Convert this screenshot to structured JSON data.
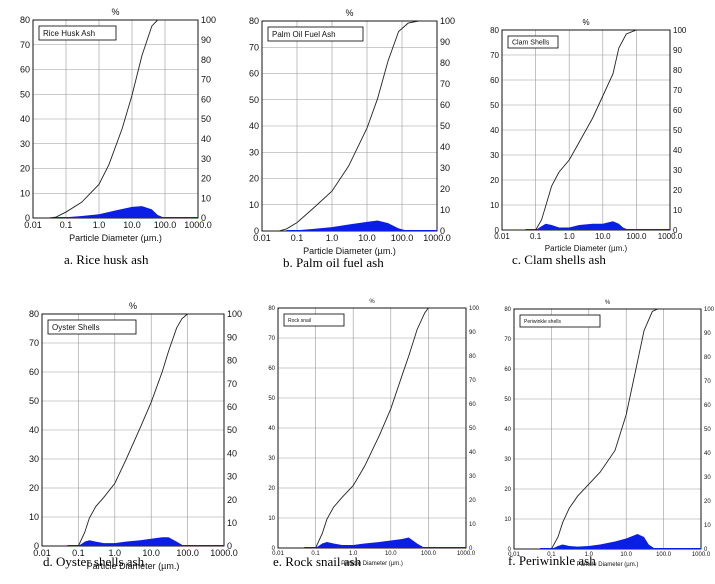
{
  "figure": {
    "panels": [
      {
        "id": "a",
        "legend": "Rice Husk Ash",
        "caption": "a. Rice husk ash"
      },
      {
        "id": "b",
        "legend": "Palm Oil Fuel Ash",
        "caption": "b. Palm oil fuel ash"
      },
      {
        "id": "c",
        "legend": "Clam Shells",
        "caption": "c. Clam shells ash"
      },
      {
        "id": "d",
        "legend": "Oyster Shells",
        "caption": "d. Oyster shells ash"
      },
      {
        "id": "e",
        "legend": "Rock snail",
        "caption": "e. Rock snail ash"
      },
      {
        "id": "f",
        "legend": "Periwinkle shells",
        "caption": "f. Periwinkle ash"
      }
    ]
  },
  "colors": {
    "frequency_fill": "#0a1ee6",
    "cumulative_line": "#222222",
    "grid": "#9a9a9a",
    "frame": "#000000"
  },
  "chart_data": [
    {
      "type": "area",
      "title": "%",
      "xlabel": "Particle Diameter (µm.)",
      "x_scale": "log",
      "xlim": [
        0.01,
        1000
      ],
      "x_ticks": [
        "0.01",
        "0.1",
        "1.0",
        "10.0",
        "100.0",
        "1000.0"
      ],
      "ylim_left": [
        0,
        80
      ],
      "y_ticks_left": [
        "0",
        "10",
        "20",
        "30",
        "40",
        "50",
        "60",
        "70",
        "80"
      ],
      "ylim_right": [
        0,
        100
      ],
      "y_ticks_right": [
        "0",
        "10",
        "20",
        "30",
        "40",
        "50",
        "60",
        "70",
        "80",
        "90",
        "100"
      ],
      "grid": true,
      "legend_position": "top-left",
      "series": [
        {
          "name": "Rice Husk Ash",
          "kind": "frequency",
          "axis": "left",
          "x": [
            0.05,
            0.1,
            0.3,
            1,
            3,
            10,
            20,
            40,
            60,
            100
          ],
          "y": [
            0,
            0.3,
            0.8,
            1.5,
            3,
            4.5,
            4.8,
            3.5,
            1.2,
            0
          ]
        },
        {
          "name": "Rice Husk Ash",
          "kind": "cumulative",
          "axis": "right",
          "x": [
            0.03,
            0.05,
            0.1,
            0.3,
            1,
            2,
            5,
            10,
            20,
            40,
            60,
            100,
            1000
          ],
          "y": [
            0,
            0.5,
            3,
            8,
            17,
            27,
            45,
            62,
            82,
            97,
            100,
            100,
            100
          ]
        }
      ]
    },
    {
      "type": "area",
      "title": "%",
      "xlabel": "Particle Diameter (µm.)",
      "x_scale": "log",
      "xlim": [
        0.01,
        1000
      ],
      "x_ticks": [
        "0.01",
        "0.1",
        "1.0",
        "10.0",
        "100.0",
        "1000.0"
      ],
      "ylim_left": [
        0,
        80
      ],
      "y_ticks_left": [
        "0",
        "10",
        "20",
        "30",
        "40",
        "50",
        "60",
        "70",
        "80"
      ],
      "ylim_right": [
        0,
        100
      ],
      "y_ticks_right": [
        "0",
        "10",
        "20",
        "30",
        "40",
        "50",
        "60",
        "70",
        "80",
        "90",
        "100"
      ],
      "grid": true,
      "legend_position": "top-left",
      "series": [
        {
          "name": "Palm Oil Fuel Ash",
          "kind": "frequency",
          "axis": "left",
          "x": [
            0.05,
            0.1,
            0.3,
            1,
            3,
            10,
            20,
            40,
            80,
            150
          ],
          "y": [
            0,
            0.3,
            0.8,
            1.5,
            2.5,
            3.5,
            4,
            3,
            1,
            0
          ]
        },
        {
          "name": "Palm Oil Fuel Ash",
          "kind": "cumulative",
          "axis": "right",
          "x": [
            0.03,
            0.05,
            0.1,
            0.3,
            1,
            3,
            10,
            20,
            40,
            80,
            150,
            300,
            1000
          ],
          "y": [
            0,
            1,
            4,
            11,
            19,
            31,
            49,
            63,
            81,
            95,
            99,
            100,
            100
          ]
        }
      ]
    },
    {
      "type": "area",
      "title": "%",
      "xlabel": "Particle Diameter (µm.)",
      "x_scale": "log",
      "xlim": [
        0.01,
        1000
      ],
      "x_ticks": [
        "0.01",
        "0.1",
        "1.0",
        "10.0",
        "100.0",
        "1000.0"
      ],
      "ylim_left": [
        0,
        80
      ],
      "y_ticks_left": [
        "0",
        "10",
        "20",
        "30",
        "40",
        "50",
        "60",
        "70",
        "80"
      ],
      "ylim_right": [
        0,
        100
      ],
      "y_ticks_right": [
        "0",
        "10",
        "20",
        "30",
        "40",
        "50",
        "60",
        "70",
        "80",
        "90",
        "100"
      ],
      "grid": true,
      "legend_position": "top-left",
      "series": [
        {
          "name": "Clam Shells",
          "kind": "frequency",
          "axis": "left",
          "x": [
            0.1,
            0.15,
            0.2,
            0.3,
            0.5,
            1,
            2,
            5,
            10,
            20,
            30,
            40,
            60
          ],
          "y": [
            0,
            1.5,
            2.5,
            2,
            1,
            1,
            2,
            2.5,
            2.5,
            3.5,
            2.5,
            1,
            0
          ]
        },
        {
          "name": "Clam Shells",
          "kind": "cumulative",
          "axis": "right",
          "x": [
            0.1,
            0.15,
            0.2,
            0.3,
            0.5,
            1,
            2,
            5,
            10,
            20,
            30,
            50,
            100,
            1000
          ],
          "y": [
            0,
            5,
            12,
            22,
            29,
            35,
            44,
            56,
            67,
            78,
            91,
            98,
            100,
            100
          ]
        }
      ]
    },
    {
      "type": "area",
      "title": "%",
      "xlabel": "Particle Diameter (µm.)",
      "x_scale": "log",
      "xlim": [
        0.01,
        1000
      ],
      "x_ticks": [
        "0.01",
        "0.1",
        "1.0",
        "10.0",
        "100.0",
        "1000.0"
      ],
      "ylim_left": [
        0,
        80
      ],
      "y_ticks_left": [
        "0",
        "10",
        "20",
        "30",
        "40",
        "50",
        "60",
        "70",
        "80"
      ],
      "ylim_right": [
        0,
        100
      ],
      "y_ticks_right": [
        "0",
        "10",
        "20",
        "30",
        "40",
        "50",
        "60",
        "70",
        "80",
        "90",
        "100"
      ],
      "grid": true,
      "legend_position": "top-left",
      "series": [
        {
          "name": "Oyster Shells",
          "kind": "frequency",
          "axis": "left",
          "x": [
            0.1,
            0.15,
            0.2,
            0.3,
            0.5,
            1,
            2,
            5,
            10,
            20,
            30,
            50,
            80
          ],
          "y": [
            0,
            1.5,
            2,
            1.5,
            1,
            1,
            1.5,
            2,
            2.5,
            3,
            3,
            1.5,
            0
          ]
        },
        {
          "name": "Oyster Shells",
          "kind": "cumulative",
          "axis": "right",
          "x": [
            0.1,
            0.15,
            0.2,
            0.3,
            0.5,
            1,
            2,
            5,
            10,
            20,
            30,
            50,
            70,
            100,
            1000
          ],
          "y": [
            0,
            6,
            12,
            17,
            21,
            27,
            37,
            51,
            62,
            75,
            84,
            94,
            98,
            100,
            100
          ]
        }
      ]
    },
    {
      "type": "area",
      "title": "%",
      "xlabel": "Particle Diameter (µm.)",
      "x_scale": "log",
      "xlim": [
        0.01,
        1000
      ],
      "x_ticks": [
        "0.01",
        "0.1",
        "1.0",
        "10.0",
        "100.0",
        "1000.0"
      ],
      "ylim_left": [
        0,
        80
      ],
      "y_ticks_left": [
        "0",
        "10",
        "20",
        "30",
        "40",
        "50",
        "60",
        "70",
        "80"
      ],
      "ylim_right": [
        0,
        100
      ],
      "y_ticks_right": [
        "0",
        "10",
        "20",
        "30",
        "40",
        "50",
        "60",
        "70",
        "80",
        "90",
        "100"
      ],
      "grid": true,
      "legend_position": "top-left",
      "series": [
        {
          "name": "Rock snail",
          "kind": "frequency",
          "axis": "left",
          "x": [
            0.1,
            0.15,
            0.2,
            0.3,
            0.5,
            1,
            2,
            5,
            10,
            20,
            30,
            50,
            80
          ],
          "y": [
            0,
            1.5,
            2,
            1.5,
            1,
            1,
            1.5,
            2,
            2.5,
            3,
            3.5,
            1.5,
            0
          ]
        },
        {
          "name": "Rock snail",
          "kind": "cumulative",
          "axis": "right",
          "x": [
            0.1,
            0.15,
            0.2,
            0.3,
            0.5,
            1,
            2,
            5,
            10,
            20,
            30,
            50,
            80,
            100,
            1000
          ],
          "y": [
            0,
            6,
            12,
            17,
            21,
            26,
            34,
            47,
            58,
            72,
            80,
            91,
            98,
            100,
            100
          ]
        }
      ]
    },
    {
      "type": "area",
      "title": "%",
      "xlabel": "Particle Diameter (µm.)",
      "x_scale": "log",
      "xlim": [
        0.01,
        1000
      ],
      "x_ticks": [
        "0.01",
        "0.1",
        "1.0",
        "10.0",
        "100.0",
        "1000.0"
      ],
      "ylim_left": [
        0,
        80
      ],
      "y_ticks_left": [
        "0",
        "10",
        "20",
        "30",
        "40",
        "50",
        "60",
        "70",
        "80"
      ],
      "ylim_right": [
        0,
        100
      ],
      "y_ticks_right": [
        "0",
        "10",
        "20",
        "30",
        "40",
        "50",
        "60",
        "70",
        "80",
        "90",
        "100"
      ],
      "grid": true,
      "legend_position": "top-left",
      "series": [
        {
          "name": "Periwinkle shells",
          "kind": "frequency",
          "axis": "left",
          "x": [
            0.1,
            0.15,
            0.2,
            0.3,
            0.5,
            1,
            2,
            5,
            10,
            20,
            30,
            40,
            60
          ],
          "y": [
            0,
            1,
            1.5,
            1,
            0.8,
            1,
            1.5,
            2.5,
            3.5,
            5,
            4,
            1.5,
            0
          ]
        },
        {
          "name": "Periwinkle shells",
          "kind": "cumulative",
          "axis": "right",
          "x": [
            0.1,
            0.15,
            0.2,
            0.3,
            0.5,
            1,
            2,
            5,
            10,
            20,
            30,
            50,
            70,
            1000
          ],
          "y": [
            0,
            5,
            11,
            17,
            22,
            27,
            32,
            41,
            56,
            78,
            91,
            99,
            100,
            100
          ]
        }
      ]
    }
  ]
}
